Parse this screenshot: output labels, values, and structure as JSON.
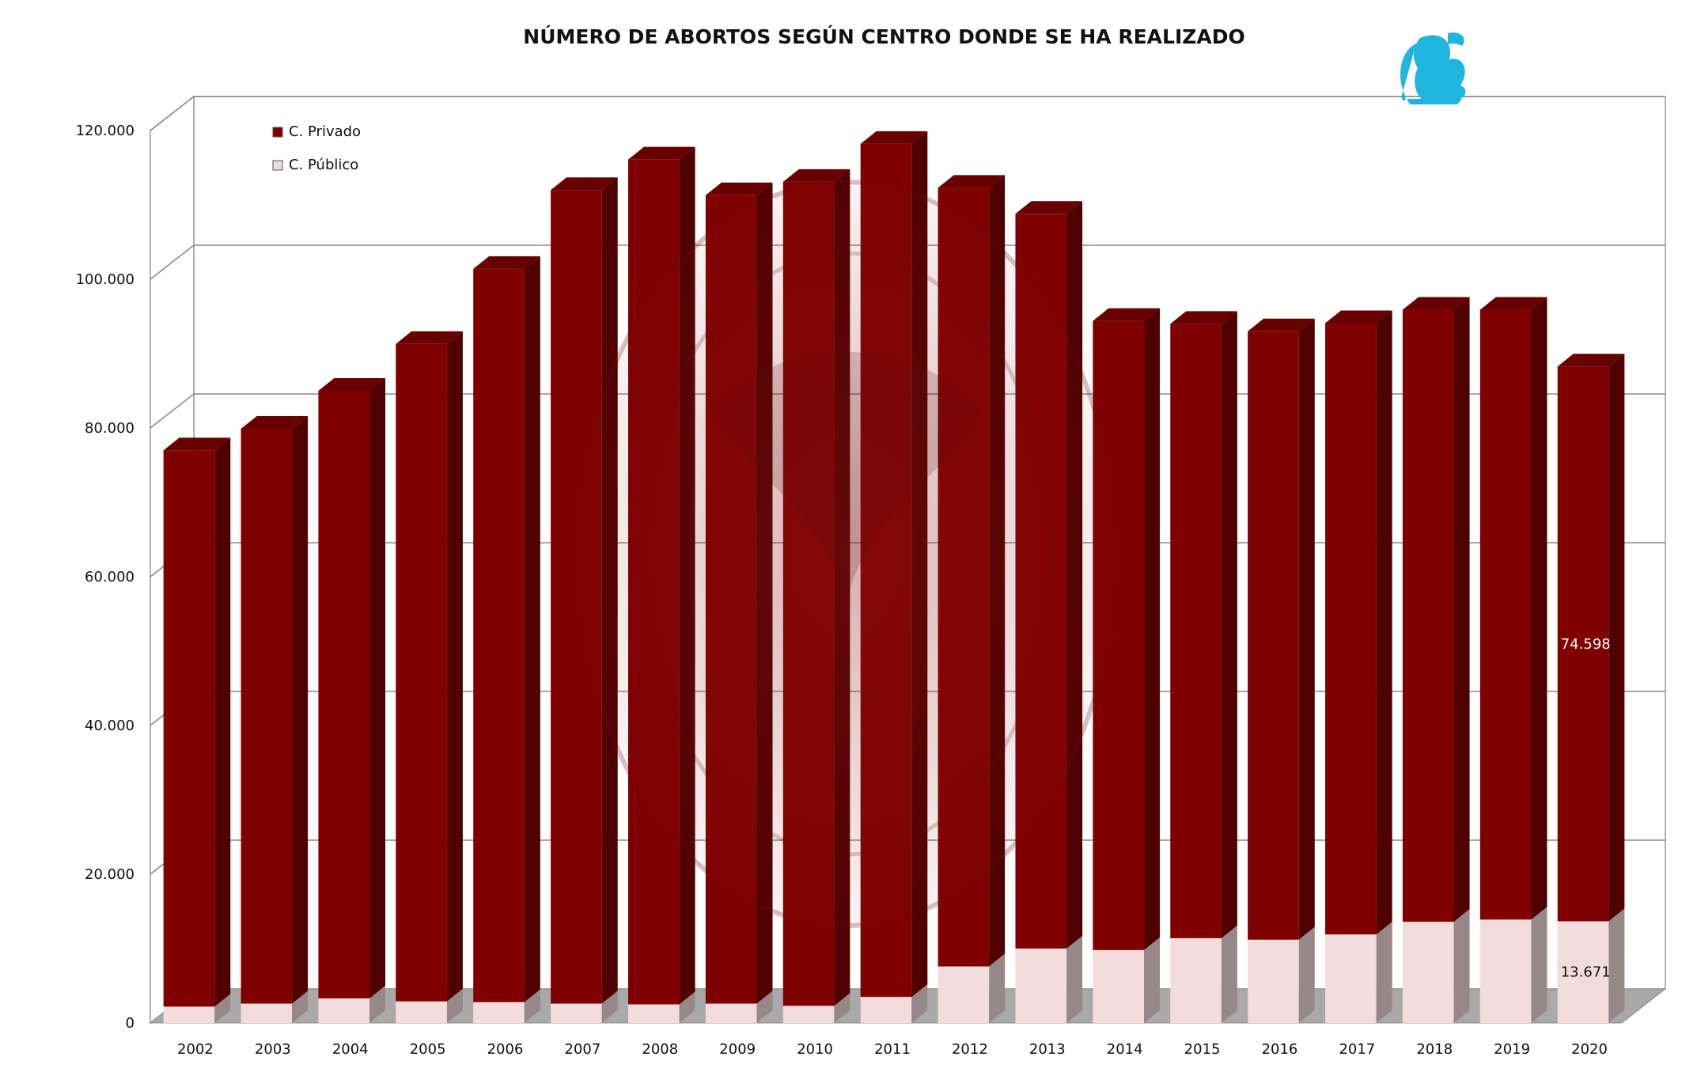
{
  "chart_data": {
    "type": "bar",
    "stacked": true,
    "three_d": true,
    "title": "NÚMERO DE ABORTOS SEGÚN CENTRO DONDE SE HA REALIZADO",
    "xlabel": "",
    "ylabel": "",
    "ylim": [
      0,
      120000
    ],
    "y_ticks": [
      "0",
      "20.000",
      "40.000",
      "60.000",
      "80.000",
      "100.000",
      "120.000"
    ],
    "grid": true,
    "legend_position": "top-left",
    "categories": [
      "2002",
      "2003",
      "2004",
      "2005",
      "2006",
      "2007",
      "2008",
      "2009",
      "2010",
      "2011",
      "2012",
      "2013",
      "2014",
      "2015",
      "2016",
      "2017",
      "2018",
      "2019",
      "2020"
    ],
    "series": [
      {
        "name": "C. Público",
        "color": "#f2dcdc",
        "values": [
          2200,
          2600,
          3300,
          2900,
          2800,
          2600,
          2500,
          2600,
          2300,
          3500,
          7600,
          10000,
          9800,
          11400,
          11200,
          11900,
          13600,
          13900,
          13671
        ]
      },
      {
        "name": "C. Privado",
        "color": "#800000",
        "values": [
          74800,
          77300,
          81700,
          88400,
          98600,
          109400,
          113600,
          108700,
          110800,
          114700,
          104700,
          98800,
          84600,
          82600,
          81800,
          82200,
          82300,
          82000,
          74598
        ]
      }
    ],
    "data_labels": [
      {
        "series": "C. Privado",
        "category": "2020",
        "text": "74.598"
      },
      {
        "series": "C. Público",
        "category": "2020",
        "text": "13.671"
      }
    ]
  },
  "logo": {
    "name": "eagle-emblem-logo",
    "color": "#1fb5dc"
  },
  "watermark": {
    "name": "eagle-seal-watermark"
  }
}
